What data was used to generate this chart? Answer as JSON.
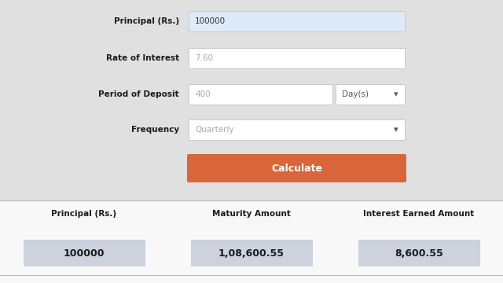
{
  "bg_color": "#e0e0e0",
  "bottom_bg_color": "#f8f8f8",
  "input_bg_blue": "#ddeaf7",
  "input_bg_white": "#ffffff",
  "dropdown_bg": "#ffffff",
  "button_color": "#d9663a",
  "button_text": "Calculate",
  "button_text_color": "#ffffff",
  "result_box_color": "#ccd3de",
  "fields": [
    {
      "label": "Principal (Rs.)",
      "value": "100000",
      "type": "input_blue"
    },
    {
      "label": "Rate of Interest",
      "value": "7.60",
      "type": "input_white"
    },
    {
      "label": "Period of Deposit",
      "value": "400",
      "type": "input_split",
      "extra": "Day(s)"
    },
    {
      "label": "Frequency",
      "value": "Quarterly",
      "type": "dropdown"
    }
  ],
  "results": [
    {
      "label": "Principal (Rs.)",
      "value": "100000"
    },
    {
      "label": "Maturity Amount",
      "value": "1,08,600.55"
    },
    {
      "label": "Interest Earned Amount",
      "value": "8,600.55"
    }
  ],
  "label_fontsize": 7.5,
  "value_fontsize": 7.5,
  "result_label_fontsize": 7.5,
  "result_value_fontsize": 9,
  "button_fontsize": 9
}
